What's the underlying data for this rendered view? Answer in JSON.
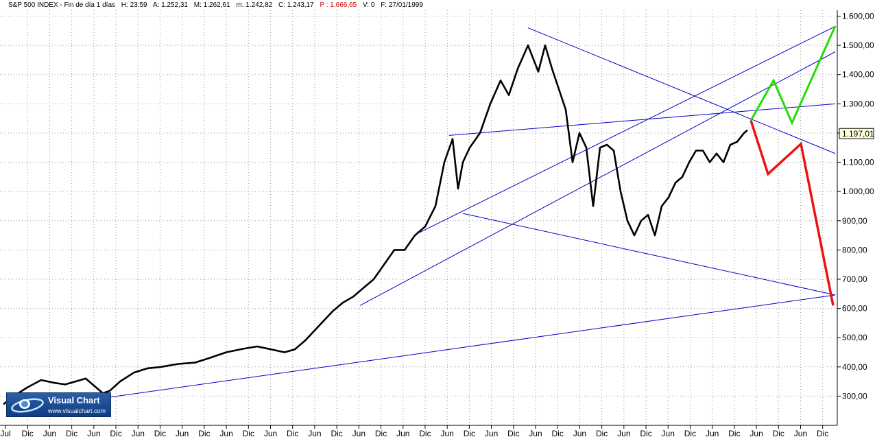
{
  "header": {
    "title": "S&P 500 INDEX - Fin de día 1 días",
    "h": "H: 23:59",
    "a": "A: 1.252,31",
    "m": "M: 1.262,61",
    "mn": "m: 1.242,82",
    "c": "C: 1.243,17",
    "p": "P : 1.666,65",
    "v": "V: 0",
    "f": "F: 27/01/1999"
  },
  "logo": {
    "name": "Visual Chart",
    "url": "www.visualchart.com"
  },
  "colors": {
    "price": "#000000",
    "trendline": "#0000c8",
    "bullish": "#22dd00",
    "bearish": "#ee1111",
    "last_price_box": "#ffffe0"
  },
  "chart_data": {
    "type": "line",
    "title": "S&P 500 INDEX",
    "ylim": [
      200,
      1620
    ],
    "y_ticks": [
      "300,00",
      "400,00",
      "500,00",
      "600,00",
      "700,00",
      "800,00",
      "900,00",
      "1.000,00",
      "1.100,00",
      "1.200,00",
      "1.300,00",
      "1.400,00",
      "1.500,00",
      "1.600,00"
    ],
    "x_tick_labels": [
      "Jul",
      "Dic",
      "Jun",
      "Dic",
      "Jun",
      "Dic",
      "Jun",
      "Dic",
      "Jun",
      "Dic",
      "Jun",
      "Dic",
      "Jun",
      "Dic",
      "Jun",
      "Dic",
      "Jun",
      "Dic",
      "Jun",
      "Dic",
      "Jun",
      "Dic",
      "Jun",
      "Dic",
      "Jun",
      "Dic",
      "Jun",
      "Dic",
      "Jun",
      "Dic",
      "Jun",
      "Dic",
      "Jun",
      "Dic",
      "Jun",
      "Dic",
      "Jun",
      "Dic"
    ],
    "last_price_label": "1.197,01",
    "last_price": 1197,
    "grid": true,
    "x_range": [
      0,
      1220
    ],
    "series": [
      {
        "role": "price",
        "x": [
          5,
          20,
          40,
          60,
          80,
          95,
          110,
          125,
          140,
          150,
          160,
          175,
          195,
          215,
          235,
          260,
          285,
          305,
          330,
          355,
          375,
          395,
          415,
          430,
          445,
          465,
          485,
          500,
          515,
          530,
          545,
          560,
          575,
          590,
          605,
          620,
          635,
          648,
          660,
          668,
          675,
          685,
          700,
          715,
          730,
          742,
          755,
          770,
          785,
          795,
          805,
          815,
          825,
          835,
          845,
          855,
          865,
          875,
          885,
          895,
          905,
          915,
          925,
          935,
          945,
          955,
          965,
          975,
          985,
          995,
          1005,
          1015,
          1025,
          1035,
          1045,
          1055,
          1065,
          1075,
          1085,
          1090
        ],
        "values": [
          272,
          300,
          330,
          355,
          345,
          340,
          350,
          360,
          330,
          310,
          318,
          350,
          380,
          395,
          400,
          410,
          415,
          430,
          450,
          462,
          470,
          460,
          450,
          460,
          490,
          540,
          590,
          620,
          640,
          670,
          700,
          750,
          800,
          800,
          850,
          880,
          950,
          1100,
          1180,
          1010,
          1100,
          1150,
          1200,
          1300,
          1380,
          1330,
          1420,
          1500,
          1410,
          1500,
          1420,
          1350,
          1280,
          1100,
          1200,
          1150,
          950,
          1150,
          1160,
          1140,
          1000,
          900,
          850,
          900,
          920,
          850,
          950,
          980,
          1030,
          1050,
          1100,
          1140,
          1140,
          1100,
          1130,
          1100,
          1160,
          1170,
          1200,
          1210
        ]
      },
      {
        "role": "bullish-projection",
        "x": [
          1095,
          1128,
          1155,
          1218
        ],
        "values": [
          1243,
          1380,
          1235,
          1566
        ]
      },
      {
        "role": "bearish-projection",
        "x": [
          1095,
          1120,
          1168,
          1215
        ],
        "values": [
          1243,
          1060,
          1163,
          610
        ]
      }
    ],
    "trendlines": [
      {
        "x": [
          20,
          1218
        ],
        "values": [
          250,
          646
        ]
      },
      {
        "x": [
          525,
          1218
        ],
        "values": [
          610,
          1478
        ]
      },
      {
        "x": [
          612,
          1218
        ],
        "values": [
          860,
          1565
        ]
      },
      {
        "x": [
          655,
          1218
        ],
        "values": [
          1192,
          1300
        ]
      },
      {
        "x": [
          770,
          1218
        ],
        "values": [
          1560,
          1130
        ]
      },
      {
        "x": [
          675,
          1218
        ],
        "values": [
          925,
          646
        ]
      }
    ]
  }
}
